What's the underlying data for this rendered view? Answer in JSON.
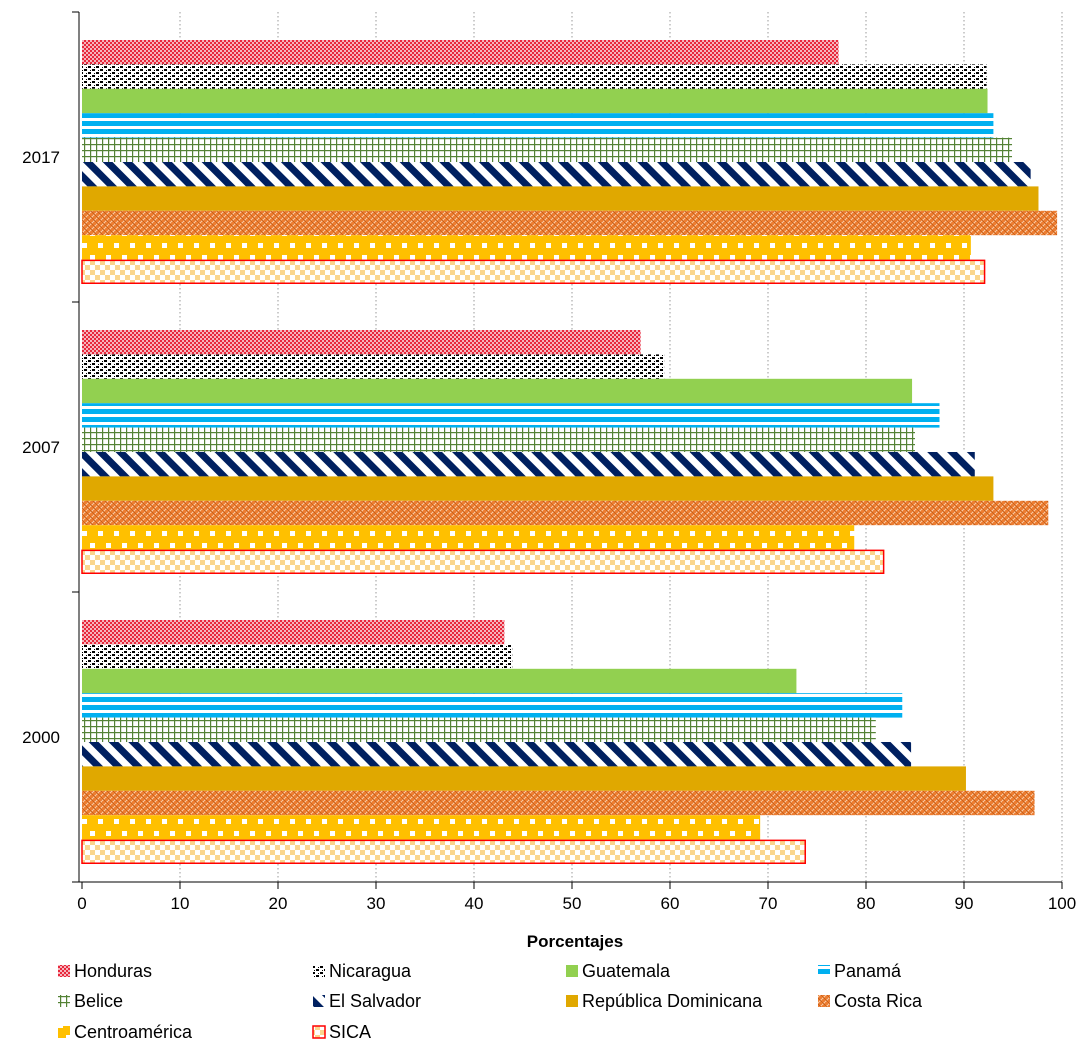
{
  "chart_data": {
    "type": "bar",
    "orientation": "horizontal",
    "categories": [
      "2017",
      "2007",
      "2000"
    ],
    "xlabel": "Porcentajes",
    "xlim": [
      0,
      100
    ],
    "x_ticks": [
      "0",
      "10",
      "20",
      "30",
      "40",
      "50",
      "60",
      "70",
      "80",
      "90",
      "100"
    ],
    "grid": "vertical-dotted",
    "legend_position": "bottom",
    "series": [
      {
        "name": "Honduras",
        "color": "#e8283c",
        "pattern": "fine-check",
        "values": [
          77.2,
          57.0,
          43.1
        ]
      },
      {
        "name": "Nicaragua",
        "color": "#000000",
        "pattern": "dots",
        "values": [
          92.3,
          59.4,
          43.9
        ]
      },
      {
        "name": "Guatemala",
        "color": "#92d050",
        "pattern": "solid",
        "values": [
          92.4,
          84.7,
          72.9
        ]
      },
      {
        "name": "Panamá",
        "color": "#00b0f0",
        "pattern": "horizontal-stripes",
        "values": [
          93.0,
          87.5,
          83.7
        ]
      },
      {
        "name": "Belice",
        "color": "#548235",
        "pattern": "grid",
        "values": [
          94.9,
          85.0,
          81.0
        ]
      },
      {
        "name": "El Salvador",
        "color": "#002060",
        "pattern": "diagonal-stripes",
        "values": [
          96.8,
          91.1,
          84.6
        ]
      },
      {
        "name": "República Dominicana",
        "color": "#e0a800",
        "pattern": "solid",
        "values": [
          97.6,
          93.0,
          90.2
        ]
      },
      {
        "name": "Costa Rica",
        "color": "#ed7d31",
        "pattern": "weave",
        "values": [
          99.5,
          98.6,
          97.2
        ]
      },
      {
        "name": "Centroamérica",
        "color": "#ffc000",
        "pattern": "dotted-band",
        "values": [
          90.7,
          78.8,
          69.2
        ]
      },
      {
        "name": "SICA",
        "color": "#ff0000",
        "pattern": "checker-outline",
        "values": [
          92.1,
          81.8,
          73.8
        ]
      }
    ]
  }
}
